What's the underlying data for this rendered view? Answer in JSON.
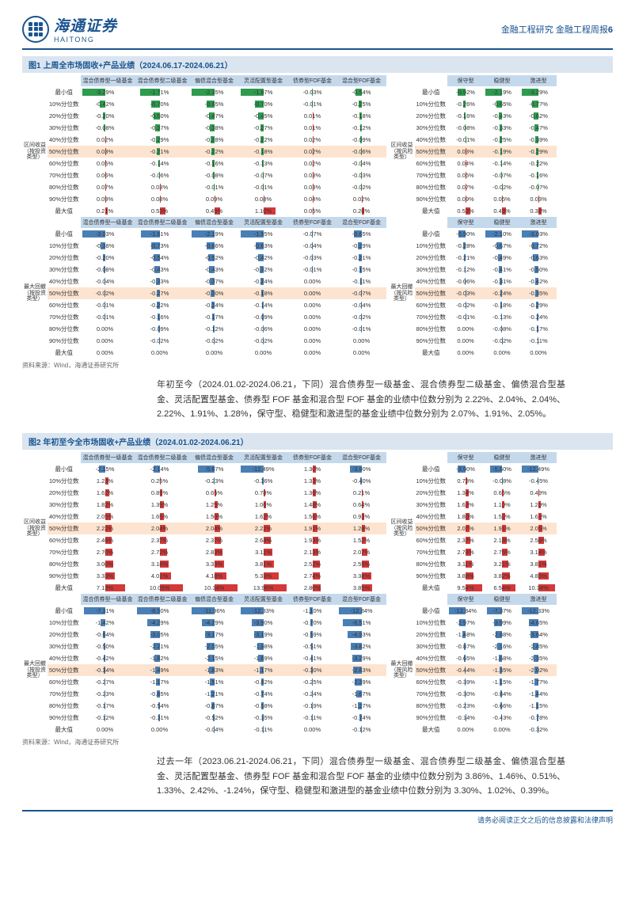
{
  "header": {
    "cn": "海通证券",
    "en": "HAITONG",
    "right": "金融工程研究 金融工程周报",
    "page": "6"
  },
  "colors": {
    "green": "#2e9b4f",
    "red": "#d43838",
    "blue": "#4a7fb5",
    "hlbg": "#fde4d0",
    "hdrbg": "#c5d9ed"
  },
  "fig1": {
    "title": "图1  上周全市场固收+产品业绩（2024.06.17-2024.06.21）",
    "cols_main": [
      "混合债券型一级基金",
      "混合债券型二级基金",
      "偏债混合型基金",
      "灵活配置型基金",
      "债券型FOF基金",
      "混合型FOF基金"
    ],
    "cols_side": [
      "保守型",
      "稳健型",
      "激进型"
    ],
    "rowlabels": [
      "最小值",
      "10%分位数",
      "20%分位数",
      "30%分位数",
      "40%分位数",
      "50%分位数",
      "60%分位数",
      "70%分位数",
      "80%分位数",
      "90%分位数",
      "最大值"
    ],
    "cat1_main": "区间收益（按投资类型）",
    "cat1_side": "区间收益（按风险类型）",
    "cat2_main": "最大回撤（按投资类型）",
    "cat2_side": "最大回撤（按风险类型）",
    "sec1_main": [
      [
        "-3.29%",
        "-1.71%",
        "-2.35%",
        "-1.97%",
        "-0.03%",
        "-0.54%"
      ],
      [
        "-0.42%",
        "-0.70%",
        "-0.65%",
        "-0.70%",
        "-0.01%",
        "-0.25%"
      ],
      [
        "-0.20%",
        "-0.50%",
        "-0.47%",
        "-0.45%",
        "0.01%",
        "-0.18%"
      ],
      [
        "-0.08%",
        "-0.37%",
        "-0.38%",
        "-0.27%",
        "0.01%",
        "-0.12%"
      ],
      [
        "0.02%",
        "-0.29%",
        "-0.28%",
        "-0.22%",
        "0.02%",
        "-0.09%"
      ],
      [
        "0.03%",
        "-0.21%",
        "-0.22%",
        "-0.18%",
        "0.02%",
        "-0.06%"
      ],
      [
        "0.05%",
        "-0.14%",
        "-0.16%",
        "-0.13%",
        "0.02%",
        "-0.04%"
      ],
      [
        "0.06%",
        "-0.06%",
        "-0.08%",
        "-0.07%",
        "0.03%",
        "-0.03%"
      ],
      [
        "0.07%",
        "0.03%",
        "-0.01%",
        "-0.01%",
        "0.03%",
        "-0.02%"
      ],
      [
        "0.09%",
        "0.08%",
        "0.09%",
        "0.08%",
        "0.04%",
        "0.02%"
      ],
      [
        "0.21%",
        "0.53%",
        "0.49%",
        "1.10%",
        "0.05%",
        "0.26%"
      ]
    ],
    "sec1_side": [
      [
        "-0.92%",
        "-2.19%",
        "-3.29%"
      ],
      [
        "-0.26%",
        "-0.65%",
        "-0.77%"
      ],
      [
        "-0.16%",
        "-0.43%",
        "-0.62%"
      ],
      [
        "-0.08%",
        "-0.33%",
        "-0.47%"
      ],
      [
        "-0.01%",
        "-0.25%",
        "-0.39%"
      ],
      [
        "0.03%",
        "-0.19%",
        "-0.29%"
      ],
      [
        "0.04%",
        "-0.14%",
        "-0.22%"
      ],
      [
        "0.05%",
        "-0.07%",
        "-0.16%"
      ],
      [
        "0.07%",
        "-0.02%",
        "-0.07%"
      ],
      [
        "0.09%",
        "0.05%",
        "0.03%"
      ],
      [
        "0.53%",
        "0.49%",
        "0.36%"
      ]
    ],
    "sec2_main": [
      [
        "-3.03%",
        "-1.61%",
        "-2.19%",
        "-1.95%",
        "-0.07%",
        "-0.65%"
      ],
      [
        "-0.38%",
        "-0.73%",
        "-0.66%",
        "-0.63%",
        "-0.04%",
        "-0.29%"
      ],
      [
        "-0.20%",
        "-0.54%",
        "-0.52%",
        "-0.42%",
        "-0.03%",
        "-0.21%"
      ],
      [
        "-0.08%",
        "-0.43%",
        "-0.43%",
        "-0.32%",
        "-0.01%",
        "-0.15%"
      ],
      [
        "-0.04%",
        "-0.33%",
        "-0.37%",
        "-0.24%",
        "0.00%",
        "-0.11%"
      ],
      [
        "-0.02%",
        "-0.27%",
        "-0.30%",
        "-0.18%",
        "0.00%",
        "-0.07%"
      ],
      [
        "-0.01%",
        "-0.22%",
        "-0.24%",
        "-0.14%",
        "0.00%",
        "-0.04%"
      ],
      [
        "-0.01%",
        "-0.16%",
        "-0.17%",
        "-0.09%",
        "0.00%",
        "-0.02%"
      ],
      [
        "0.00%",
        "-0.09%",
        "-0.12%",
        "-0.06%",
        "0.00%",
        "-0.01%"
      ],
      [
        "0.00%",
        "-0.02%",
        "-0.02%",
        "-0.02%",
        "0.00%",
        "0.00%"
      ],
      [
        "0.00%",
        "0.00%",
        "0.00%",
        "0.00%",
        "0.00%",
        "0.00%"
      ]
    ],
    "sec2_side": [
      [
        "-0.90%",
        "-2.10%",
        "-3.03%"
      ],
      [
        "-0.28%",
        "-0.67%",
        "-0.72%"
      ],
      [
        "-0.21%",
        "-0.49%",
        "-0.63%"
      ],
      [
        "-0.12%",
        "-0.41%",
        "-0.50%"
      ],
      [
        "-0.06%",
        "-0.31%",
        "-0.42%"
      ],
      [
        "-0.03%",
        "-0.24%",
        "-0.35%"
      ],
      [
        "-0.02%",
        "-0.18%",
        "-0.29%"
      ],
      [
        "-0.01%",
        "-0.13%",
        "-0.24%"
      ],
      [
        "0.00%",
        "-0.08%",
        "-0.17%"
      ],
      [
        "0.00%",
        "-0.02%",
        "-0.11%"
      ],
      [
        "0.00%",
        "0.00%",
        "0.00%"
      ]
    ]
  },
  "para1": "年初至今（2024.01.02-2024.06.21，下同）混合债券型一级基金、混合债券型二级基金、偏债混合型基金、灵活配置型基金、债券型 FOF 基金和混合型 FOF 基金的业绩中位数分别为 2.22%、2.04%、2.04%、2.22%、1.91%、1.28%，保守型、稳健型和激进型的基金业绩中位数分别为 2.07%、1.91%、2.05%。",
  "fig2": {
    "title": "图2  年初至今全市场固收+产品业绩（2024.01.02-2024.06.21）",
    "sec1_main": [
      [
        "-2.15%",
        "-2.14%",
        "-5.67%",
        "-12.49%",
        "1.30%",
        "-3.90%"
      ],
      [
        "1.23%",
        "0.25%",
        "-0.23%",
        "-0.36%",
        "1.33%",
        "-0.40%"
      ],
      [
        "1.62%",
        "0.89%",
        "0.65%",
        "0.78%",
        "1.36%",
        "0.21%"
      ],
      [
        "1.82%",
        "1.39%",
        "1.25%",
        "1.06%",
        "1.48%",
        "0.64%"
      ],
      [
        "2.05%",
        "1.65%",
        "1.50%",
        "1.62%",
        "1.56%",
        "0.93%"
      ],
      [
        "2.22%",
        "2.04%",
        "2.04%",
        "2.22%",
        "1.91%",
        "1.28%"
      ],
      [
        "2.46%",
        "2.37%",
        "2.37%",
        "2.64%",
        "1.93%",
        "1.52%"
      ],
      [
        "2.70%",
        "2.72%",
        "2.83%",
        "3.11%",
        "2.13%",
        "2.07%"
      ],
      [
        "3.00%",
        "3.18%",
        "3.33%",
        "3.81%",
        "2.52%",
        "2.59%"
      ],
      [
        "3.33%",
        "4.01%",
        "4.18%",
        "5.33%",
        "2.74%",
        "3.38%"
      ],
      [
        "7.13%",
        "10.05%",
        "10.34%",
        "13.96%",
        "2.80%",
        "3.85%"
      ]
    ],
    "sec1_side": [
      [
        "-3.90%",
        "-5.60%",
        "-12.49%"
      ],
      [
        "0.73%",
        "-0.08%",
        "-0.45%"
      ],
      [
        "1.34%",
        "0.65%",
        "0.49%"
      ],
      [
        "1.63%",
        "1.10%",
        "1.20%"
      ],
      [
        "1.80%",
        "1.52%",
        "1.61%"
      ],
      [
        "2.07%",
        "1.91%",
        "2.05%"
      ],
      [
        "2.37%",
        "2.18%",
        "2.56%"
      ],
      [
        "2.74%",
        "2.76%",
        "3.14%"
      ],
      [
        "3.11%",
        "3.21%",
        "3.81%"
      ],
      [
        "3.88%",
        "3.82%",
        "4.85%"
      ],
      [
        "9.54%",
        "6.54%",
        "10.34%"
      ]
    ],
    "sec2_main": [
      [
        "-7.31%",
        "-8.50%",
        "-11.96%",
        "-12.33%",
        "-1.10%",
        "-12.84%"
      ],
      [
        "-1.42%",
        "-4.29%",
        "-4.29%",
        "-3.90%",
        "-0.70%",
        "-6.51%"
      ],
      [
        "-0.64%",
        "-3.05%",
        "-3.17%",
        "-3.19%",
        "-0.59%",
        "-4.93%"
      ],
      [
        "-0.50%",
        "-2.21%",
        "-2.55%",
        "-1.98%",
        "-0.51%",
        "-3.82%"
      ],
      [
        "-0.42%",
        "-1.82%",
        "-2.15%",
        "-1.69%",
        "-0.41%",
        "-3.29%"
      ],
      [
        "-0.34%",
        "-1.49%",
        "-1.83%",
        "-1.17%",
        "-0.30%",
        "-2.83%"
      ],
      [
        "-0.27%",
        "-1.17%",
        "-1.51%",
        "-0.82%",
        "-0.25%",
        "-2.39%"
      ],
      [
        "-0.23%",
        "-0.85%",
        "-1.21%",
        "-0.74%",
        "-0.24%",
        "-1.67%"
      ],
      [
        "-0.17%",
        "-0.54%",
        "-0.87%",
        "-0.58%",
        "-0.19%",
        "-1.27%"
      ],
      [
        "-0.12%",
        "-0.31%",
        "-0.52%",
        "-0.35%",
        "-0.11%",
        "-0.74%"
      ],
      [
        "0.00%",
        "0.00%",
        "-0.04%",
        "-0.11%",
        "0.00%",
        "-0.12%"
      ]
    ],
    "sec2_side": [
      [
        "-12.84%",
        "-7.37%",
        "-12.33%"
      ],
      [
        "-2.97%",
        "-3.99%",
        "-4.65%"
      ],
      [
        "-1.48%",
        "-2.88%",
        "-3.64%"
      ],
      [
        "-0.87%",
        "-2.16%",
        "-2.85%"
      ],
      [
        "-0.65%",
        "-1.68%",
        "-2.35%"
      ],
      [
        "-0.44%",
        "-1.35%",
        "-2.02%"
      ],
      [
        "-0.39%",
        "-1.15%",
        "-1.77%"
      ],
      [
        "-0.30%",
        "-0.84%",
        "-1.44%"
      ],
      [
        "-0.23%",
        "-0.66%",
        "-1.15%"
      ],
      [
        "-0.14%",
        "-0.43%",
        "-0.78%"
      ],
      [
        "0.00%",
        "0.00%",
        "-0.32%"
      ]
    ]
  },
  "para2": "过去一年（2023.06.21-2024.06.21，下同）混合债券型一级基金、混合债券型二级基金、偏债混合型基金、灵活配置型基金、债券型 FOF 基金和混合型 FOF 基金的业绩中位数分别为 3.86%、1.46%、0.51%、1.33%、2.42%、-1.24%，保守型、稳健型和激进型的基金业绩中位数分别为 3.30%、1.02%、0.39%。",
  "source": "资料来源：Wind，海通证券研究所",
  "footer": "请务必阅读正文之后的信息披露和法律声明"
}
